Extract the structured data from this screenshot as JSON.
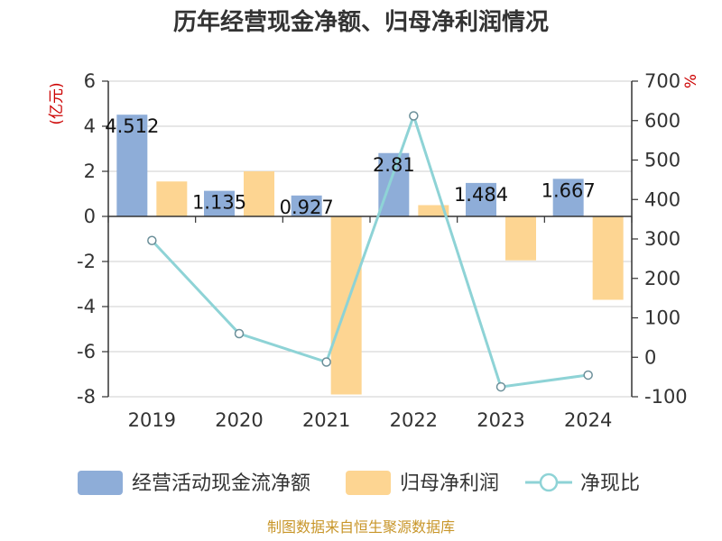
{
  "chart_data": {
    "type": "bar",
    "title": "历年经营现金净额、归母净利润情况",
    "categories": [
      "2019",
      "2020",
      "2021",
      "2022",
      "2023",
      "2024"
    ],
    "y_left": {
      "unit": "(亿元)",
      "min": -8,
      "max": 6,
      "ticks": [
        -8,
        -6,
        -4,
        -2,
        0,
        2,
        4,
        6
      ]
    },
    "y_right": {
      "unit": "%",
      "min": -100,
      "max": 700,
      "ticks": [
        -100,
        0,
        100,
        200,
        300,
        400,
        500,
        600,
        700
      ]
    },
    "series": [
      {
        "name": "经营活动现金流净额",
        "kind": "bar",
        "axis": "left",
        "color": "#8eadd8",
        "values": [
          4.512,
          1.135,
          0.927,
          2.81,
          1.484,
          1.667
        ],
        "labels": [
          "4.512",
          "1.135",
          "0.927",
          "2.81",
          "1.484",
          "1.667"
        ]
      },
      {
        "name": "归母净利润",
        "kind": "bar",
        "axis": "left",
        "color": "#fdd592",
        "values": [
          1.55,
          2.0,
          -7.9,
          0.5,
          -1.95,
          -3.7
        ]
      },
      {
        "name": "净现比",
        "kind": "line",
        "axis": "right",
        "color": "#8ed3d6",
        "values": [
          296,
          60,
          -12,
          612,
          -75,
          -45
        ]
      }
    ],
    "grid": true,
    "legend_position": "bottom"
  },
  "source": "制图数据来自恒生聚源数据库"
}
